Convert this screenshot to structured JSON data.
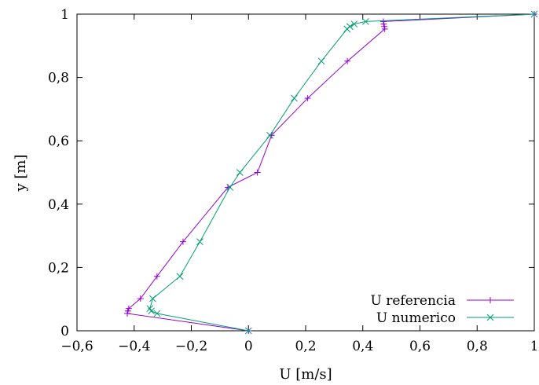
{
  "chart_data": {
    "type": "line",
    "title": "",
    "xlabel": "U [m/s]",
    "ylabel": "y [m]",
    "xlim": [
      -0.6,
      1.0
    ],
    "ylim": [
      0,
      1.0
    ],
    "xticks": [
      -0.6,
      -0.4,
      -0.2,
      0,
      0.2,
      0.4,
      0.6,
      0.8,
      1.0
    ],
    "yticks": [
      0,
      0.2,
      0.4,
      0.6,
      0.8,
      1.0
    ],
    "xtick_labels": [
      "−0,6",
      "−0,4",
      "−0,2",
      "0",
      "0,2",
      "0,4",
      "0,6",
      "0,8",
      "1"
    ],
    "ytick_labels": [
      "0",
      "0,2",
      "0,4",
      "0,6",
      "0,8",
      "1"
    ],
    "grid": false,
    "legend_position": "bottom-right",
    "series": [
      {
        "name": "U referencia",
        "color": "#9400d3",
        "marker": "plus",
        "points": [
          {
            "x": 0.0,
            "y": 0.0
          },
          {
            "x": -0.424,
            "y": 0.0547
          },
          {
            "x": -0.422,
            "y": 0.0625
          },
          {
            "x": -0.419,
            "y": 0.0703
          },
          {
            "x": -0.378,
            "y": 0.1016
          },
          {
            "x": -0.32,
            "y": 0.1719
          },
          {
            "x": -0.229,
            "y": 0.2813
          },
          {
            "x": -0.072,
            "y": 0.4531
          },
          {
            "x": 0.0313,
            "y": 0.5
          },
          {
            "x": 0.0808,
            "y": 0.6172
          },
          {
            "x": 0.2072,
            "y": 0.7344
          },
          {
            "x": 0.346,
            "y": 0.8516
          },
          {
            "x": 0.4768,
            "y": 0.9531
          },
          {
            "x": 0.4753,
            "y": 0.9609
          },
          {
            "x": 0.4733,
            "y": 0.9688
          },
          {
            "x": 0.4722,
            "y": 0.9766
          },
          {
            "x": 1.0,
            "y": 1.0
          }
        ]
      },
      {
        "name": "U numerico",
        "color": "#009e73",
        "marker": "cross",
        "points": [
          {
            "x": 0.0,
            "y": 0.0
          },
          {
            "x": -0.32,
            "y": 0.0547
          },
          {
            "x": -0.34,
            "y": 0.0625
          },
          {
            "x": -0.345,
            "y": 0.0703
          },
          {
            "x": -0.335,
            "y": 0.1016
          },
          {
            "x": -0.24,
            "y": 0.1719
          },
          {
            "x": -0.17,
            "y": 0.2813
          },
          {
            "x": -0.065,
            "y": 0.4531
          },
          {
            "x": -0.03,
            "y": 0.5
          },
          {
            "x": 0.075,
            "y": 0.6172
          },
          {
            "x": 0.16,
            "y": 0.7344
          },
          {
            "x": 0.255,
            "y": 0.8516
          },
          {
            "x": 0.345,
            "y": 0.9531
          },
          {
            "x": 0.355,
            "y": 0.9609
          },
          {
            "x": 0.37,
            "y": 0.9688
          },
          {
            "x": 0.41,
            "y": 0.9766
          },
          {
            "x": 1.0,
            "y": 1.0
          }
        ]
      }
    ]
  }
}
